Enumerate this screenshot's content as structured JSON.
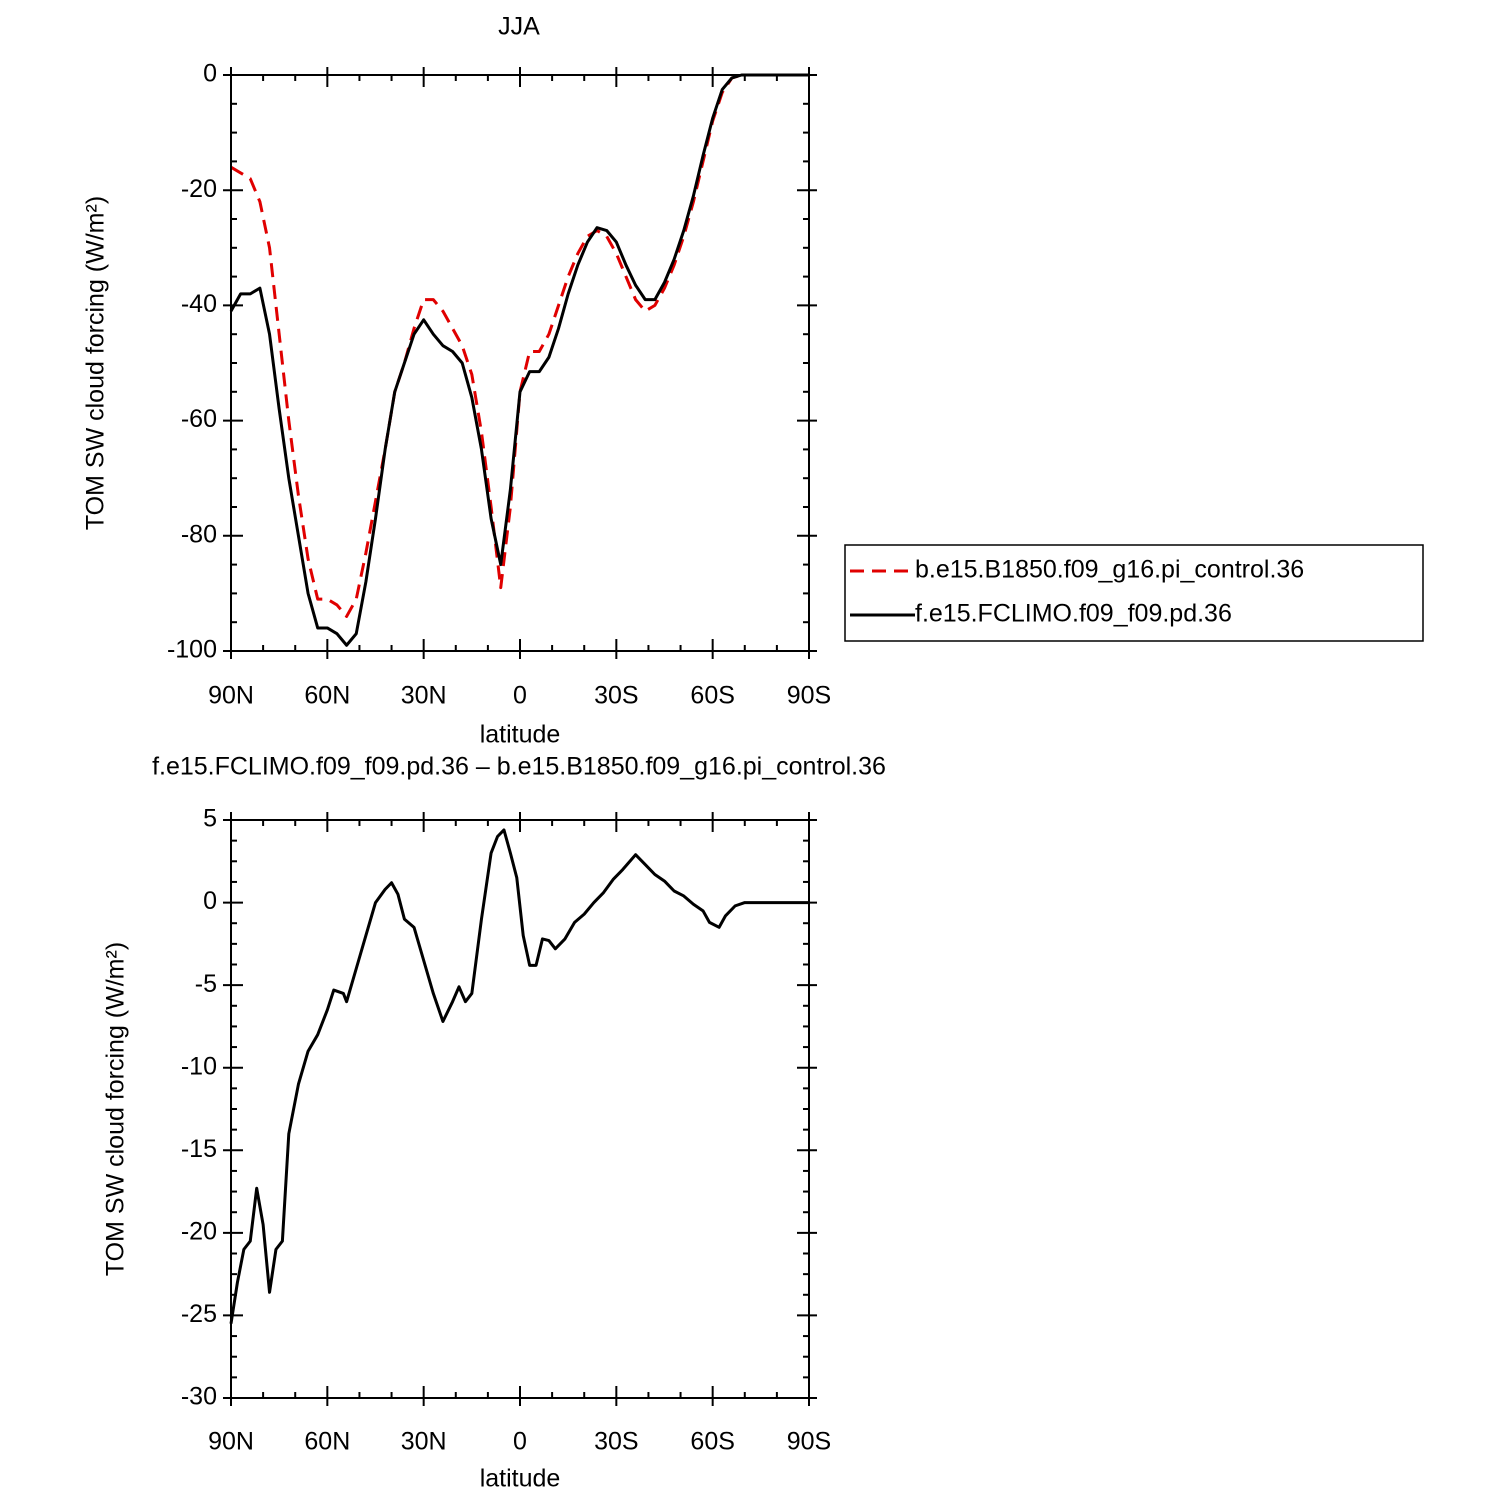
{
  "chart_data": [
    {
      "type": "line",
      "title": "JJA",
      "ylabel": "TOM SW cloud forcing (W/m²)",
      "xlabel": "latitude",
      "xlim": [
        90,
        -90
      ],
      "ylim": [
        -100,
        0
      ],
      "xticks": [
        {
          "value": 90,
          "label": "90N"
        },
        {
          "value": 60,
          "label": "60N"
        },
        {
          "value": 30,
          "label": "30N"
        },
        0,
        {
          "value": -30,
          "label": "30S"
        },
        {
          "value": -60,
          "label": "60S"
        },
        {
          "value": -90,
          "label": "90S"
        }
      ],
      "yticks": [
        -100,
        -80,
        -60,
        -40,
        -20,
        0
      ],
      "legend": "right",
      "x": [
        90,
        87,
        84,
        81,
        78,
        75,
        72,
        69,
        66,
        63,
        60,
        57,
        54,
        51,
        48,
        45,
        42,
        39,
        36,
        33,
        30,
        27,
        24,
        21,
        18,
        15,
        12,
        9,
        6,
        3,
        0,
        -3,
        -6,
        -9,
        -12,
        -15,
        -18,
        -21,
        -24,
        -27,
        -30,
        -33,
        -36,
        -39,
        -42,
        -45,
        -48,
        -51,
        -54,
        -57,
        -60,
        -63,
        -66,
        -69,
        -72,
        -75,
        -78,
        -81,
        -84,
        -87,
        -90
      ],
      "series": [
        {
          "name": "b.e15.B1850.f09_g16.pi_control.36",
          "color": "#e00000",
          "dashed": true,
          "values": [
            -16,
            -17,
            -18,
            -22,
            -30,
            -45,
            -60,
            -73,
            -84,
            -91,
            -91,
            -92,
            -94,
            -91,
            -83,
            -74,
            -65,
            -55,
            -50,
            -44,
            -39,
            -39,
            -41,
            -44,
            -47,
            -52,
            -62,
            -75,
            -89,
            -75,
            -55,
            -48,
            -48,
            -45,
            -40,
            -35,
            -31,
            -28,
            -27,
            -28,
            -31,
            -35,
            -39,
            -41,
            -40,
            -37,
            -33,
            -28,
            -22,
            -15,
            -8,
            -3,
            -0.5,
            0,
            0,
            0,
            0,
            0,
            0,
            0,
            0
          ]
        },
        {
          "name": "f.e15.FCLIMO.f09_f09.pd.36",
          "color": "#000000",
          "dashed": false,
          "values": [
            -41,
            -38,
            -38,
            -37,
            -45,
            -58,
            -70,
            -80,
            -90,
            -96,
            -96,
            -97,
            -99,
            -97,
            -88,
            -77,
            -65,
            -55,
            -50,
            -45,
            -42.5,
            -45,
            -47,
            -48,
            -50,
            -56,
            -65,
            -77,
            -85,
            -72,
            -55,
            -51.5,
            -51.5,
            -49,
            -44,
            -38,
            -33,
            -29,
            -26.5,
            -27,
            -29,
            -33,
            -36.5,
            -39,
            -39,
            -36,
            -32,
            -27,
            -21,
            -14,
            -7.5,
            -2.5,
            -0.5,
            0,
            0,
            0,
            0,
            0,
            0,
            0,
            0
          ]
        }
      ]
    },
    {
      "type": "line",
      "title": "f.e15.FCLIMO.f09_f09.pd.36 – b.e15.B1850.f09_g16.pi_control.36",
      "ylabel": "TOM SW cloud forcing (W/m²)",
      "xlabel": "latitude",
      "xlim": [
        90,
        -90
      ],
      "ylim": [
        -30,
        5
      ],
      "xticks": [
        {
          "value": 90,
          "label": "90N"
        },
        {
          "value": 60,
          "label": "60N"
        },
        {
          "value": 30,
          "label": "30N"
        },
        0,
        {
          "value": -30,
          "label": "30S"
        },
        {
          "value": -60,
          "label": "60S"
        },
        {
          "value": -90,
          "label": "90S"
        }
      ],
      "yticks": [
        -30,
        -25,
        -20,
        -15,
        -10,
        -5,
        0,
        5
      ],
      "color": "#000000",
      "x": [
        90,
        88,
        86,
        84,
        82,
        80,
        78,
        76,
        74,
        72,
        69,
        66,
        63,
        60,
        58,
        55,
        54,
        51,
        48,
        45,
        42,
        40,
        38,
        36,
        33,
        30,
        27,
        24,
        21,
        19,
        17,
        15,
        12,
        9,
        7,
        5,
        3,
        1,
        -1,
        -3,
        -5,
        -7,
        -9,
        -11,
        -14,
        -17,
        -20,
        -23,
        -26,
        -29,
        -32,
        -36,
        -39,
        -42,
        -45,
        -48,
        -51,
        -54,
        -57,
        -59,
        -62,
        -64,
        -67,
        -70,
        -76,
        -83,
        -90
      ],
      "values": [
        -25.5,
        -23,
        -21,
        -20.5,
        -17.3,
        -19.5,
        -23.6,
        -21,
        -20.5,
        -14,
        -11,
        -9,
        -8,
        -6.5,
        -5.3,
        -5.5,
        -6,
        -4,
        -2,
        0,
        0.8,
        1.2,
        0.5,
        -1,
        -1.5,
        -3.5,
        -5.5,
        -7.2,
        -6,
        -5.1,
        -6,
        -5.5,
        -1,
        3,
        4,
        4.4,
        3,
        1.5,
        -2,
        -3.8,
        -3.8,
        -2.2,
        -2.3,
        -2.8,
        -2.2,
        -1.2,
        -0.7,
        0,
        0.6,
        1.4,
        2,
        2.9,
        2.3,
        1.7,
        1.3,
        0.7,
        0.4,
        -0.1,
        -0.5,
        -1.2,
        -1.5,
        -0.8,
        -0.2,
        0,
        0,
        0,
        0
      ]
    }
  ]
}
